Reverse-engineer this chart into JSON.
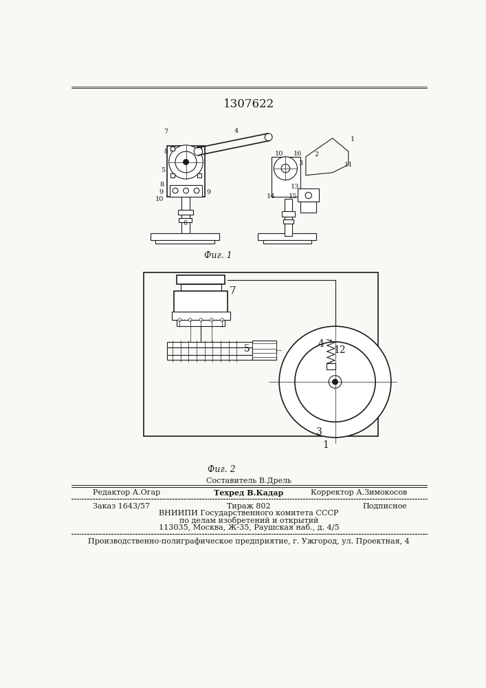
{
  "patent_number": "1307622",
  "fig1_caption": "Фиг. 1",
  "fig2_caption": "Фиг. 2",
  "footer_sestavitel": "Составитель В.Дрель",
  "footer_redaktor": "Редактор А.Огар",
  "footer_tekhred": "Техред В.Кадар",
  "footer_korrektor": "Корректор А.Зимокосов",
  "footer_zakaz": "Заказ 1643/57",
  "footer_tirazh": "Тираж 802",
  "footer_podpisnoe": "Подписное",
  "footer_vniipи": "ВНИИПИ Государственного комитета СССР",
  "footer_dela": "по делам изобретений и открытий",
  "footer_addr": "113035, Москва, Ж-35, Раушская наб., д. 4/5",
  "footer_bottom": "Производственно-полиграфическое предприятие, г. Ужгород, ул. Проектная, 4",
  "bg_color": "#f8f8f4",
  "lc": "#1a1a1a"
}
